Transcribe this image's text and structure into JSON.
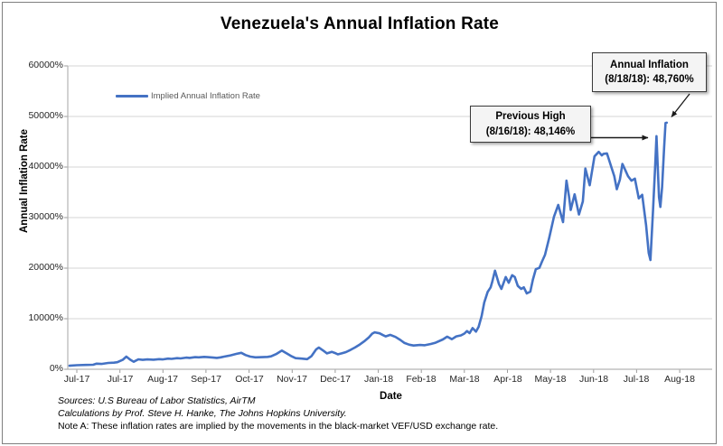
{
  "title": "Venezuela's Annual Inflation Rate",
  "legend": {
    "label": "Implied Annual Inflation Rate"
  },
  "axes": {
    "y_title": "Annual Inflation Rate",
    "x_title": "Date"
  },
  "annotations": [
    {
      "line1": "Annual Inflation",
      "line2": "(8/18/18): 48,760%"
    },
    {
      "line1": "Previous High",
      "line2": "(8/16/18): 48,146%"
    }
  ],
  "footnotes": {
    "sources": "Sources: U.S Bureau of Labor Statistics, AirTM",
    "calculations": "Calculations by Prof. Steve H. Hanke, The Johns Hopkins University.",
    "note_a": "Note A: These inflation rates are implied by the movements in the black-market VEF/USD exchange rate."
  },
  "chart_data": {
    "type": "line",
    "title": "Venezuela's Annual Inflation Rate",
    "xlabel": "Date",
    "ylabel": "Annual Inflation Rate",
    "ylim": [
      0,
      60000
    ],
    "grid": true,
    "legend_position": "top-left-inside",
    "line_color": "#4472C4",
    "y_tick_values": [
      0,
      10000,
      20000,
      30000,
      40000,
      50000,
      60000
    ],
    "y_tick_labels": [
      "0%",
      "10000%",
      "20000%",
      "30000%",
      "40000%",
      "50000%",
      "60000%"
    ],
    "x_tick_labels": [
      "Jul-17",
      "Jul-17",
      "Aug-17",
      "Sep-17",
      "Oct-17",
      "Nov-17",
      "Dec-17",
      "Jan-18",
      "Feb-18",
      "Mar-18",
      "Apr-18",
      "May-18",
      "Jun-18",
      "Jul-18",
      "Aug-18"
    ],
    "highlights": [
      {
        "label": "Previous High",
        "date": "8/16/18",
        "value_pct": 48146
      },
      {
        "label": "Annual Inflation",
        "date": "8/18/18",
        "value_pct": 48760
      }
    ],
    "series": [
      {
        "name": "Implied Annual Inflation Rate",
        "x_unit": "months from Jul-17 tick",
        "y_unit": "annual inflation %",
        "points": [
          [
            -0.17,
            700
          ],
          [
            0,
            800
          ],
          [
            0.21,
            850
          ],
          [
            0.38,
            900
          ],
          [
            0.46,
            1100
          ],
          [
            0.57,
            1050
          ],
          [
            0.73,
            1250
          ],
          [
            0.86,
            1300
          ],
          [
            0.94,
            1400
          ],
          [
            1.07,
            1900
          ],
          [
            1.15,
            2500
          ],
          [
            1.24,
            1900
          ],
          [
            1.32,
            1480
          ],
          [
            1.43,
            1960
          ],
          [
            1.53,
            1850
          ],
          [
            1.64,
            1950
          ],
          [
            1.78,
            1900
          ],
          [
            1.91,
            2000
          ],
          [
            1.99,
            1950
          ],
          [
            2.12,
            2100
          ],
          [
            2.2,
            2050
          ],
          [
            2.33,
            2200
          ],
          [
            2.41,
            2150
          ],
          [
            2.54,
            2300
          ],
          [
            2.62,
            2250
          ],
          [
            2.75,
            2400
          ],
          [
            2.83,
            2350
          ],
          [
            2.96,
            2450
          ],
          [
            3.04,
            2400
          ],
          [
            3.17,
            2300
          ],
          [
            3.25,
            2250
          ],
          [
            3.34,
            2350
          ],
          [
            3.42,
            2500
          ],
          [
            3.57,
            2750
          ],
          [
            3.71,
            3050
          ],
          [
            3.82,
            3250
          ],
          [
            3.92,
            2800
          ],
          [
            4.03,
            2500
          ],
          [
            4.15,
            2350
          ],
          [
            4.3,
            2400
          ],
          [
            4.43,
            2450
          ],
          [
            4.51,
            2550
          ],
          [
            4.64,
            3050
          ],
          [
            4.76,
            3700
          ],
          [
            4.89,
            3050
          ],
          [
            4.99,
            2550
          ],
          [
            5.08,
            2200
          ],
          [
            5.22,
            2100
          ],
          [
            5.35,
            2000
          ],
          [
            5.45,
            2600
          ],
          [
            5.56,
            3950
          ],
          [
            5.62,
            4300
          ],
          [
            5.73,
            3650
          ],
          [
            5.81,
            3150
          ],
          [
            5.92,
            3450
          ],
          [
            6.0,
            3200
          ],
          [
            6.06,
            2950
          ],
          [
            6.15,
            3150
          ],
          [
            6.25,
            3400
          ],
          [
            6.36,
            3850
          ],
          [
            6.46,
            4300
          ],
          [
            6.57,
            4900
          ],
          [
            6.67,
            5500
          ],
          [
            6.78,
            6300
          ],
          [
            6.86,
            7050
          ],
          [
            6.92,
            7300
          ],
          [
            7.03,
            7100
          ],
          [
            7.11,
            6750
          ],
          [
            7.17,
            6500
          ],
          [
            7.28,
            6800
          ],
          [
            7.4,
            6400
          ],
          [
            7.51,
            5800
          ],
          [
            7.61,
            5200
          ],
          [
            7.72,
            4850
          ],
          [
            7.82,
            4700
          ],
          [
            7.97,
            4800
          ],
          [
            8.08,
            4750
          ],
          [
            8.22,
            5000
          ],
          [
            8.33,
            5250
          ],
          [
            8.5,
            5900
          ],
          [
            8.6,
            6450
          ],
          [
            8.71,
            5950
          ],
          [
            8.81,
            6500
          ],
          [
            8.92,
            6700
          ],
          [
            9.0,
            7050
          ],
          [
            9.06,
            7550
          ],
          [
            9.12,
            7150
          ],
          [
            9.19,
            8150
          ],
          [
            9.27,
            7450
          ],
          [
            9.33,
            8400
          ],
          [
            9.4,
            10500
          ],
          [
            9.46,
            13200
          ],
          [
            9.54,
            15300
          ],
          [
            9.61,
            16200
          ],
          [
            9.65,
            17400
          ],
          [
            9.71,
            19500
          ],
          [
            9.8,
            16900
          ],
          [
            9.86,
            15900
          ],
          [
            9.96,
            18250
          ],
          [
            10.03,
            17100
          ],
          [
            10.11,
            18600
          ],
          [
            10.17,
            18250
          ],
          [
            10.24,
            16500
          ],
          [
            10.32,
            15900
          ],
          [
            10.38,
            16200
          ],
          [
            10.45,
            15000
          ],
          [
            10.53,
            15350
          ],
          [
            10.59,
            17700
          ],
          [
            10.66,
            19800
          ],
          [
            10.74,
            20050
          ],
          [
            10.8,
            21250
          ],
          [
            10.87,
            22600
          ],
          [
            10.97,
            26000
          ],
          [
            11.08,
            30200
          ],
          [
            11.18,
            32500
          ],
          [
            11.29,
            29100
          ],
          [
            11.37,
            37300
          ],
          [
            11.43,
            34200
          ],
          [
            11.47,
            31500
          ],
          [
            11.56,
            34600
          ],
          [
            11.66,
            30600
          ],
          [
            11.75,
            33200
          ],
          [
            11.81,
            39700
          ],
          [
            11.91,
            36400
          ],
          [
            12.02,
            42100
          ],
          [
            12.12,
            43000
          ],
          [
            12.19,
            42300
          ],
          [
            12.23,
            42600
          ],
          [
            12.31,
            42700
          ],
          [
            12.42,
            39800
          ],
          [
            12.48,
            38200
          ],
          [
            12.54,
            35600
          ],
          [
            12.61,
            37500
          ],
          [
            12.67,
            40600
          ],
          [
            12.73,
            39500
          ],
          [
            12.8,
            38200
          ],
          [
            12.88,
            37300
          ],
          [
            12.96,
            37700
          ],
          [
            13.05,
            33800
          ],
          [
            13.13,
            34500
          ],
          [
            13.22,
            28500
          ],
          [
            13.28,
            23000
          ],
          [
            13.32,
            21600
          ],
          [
            13.38,
            31500
          ],
          [
            13.43,
            40000
          ],
          [
            13.46,
            46100
          ],
          [
            13.49,
            40000
          ],
          [
            13.52,
            34000
          ],
          [
            13.55,
            32100
          ],
          [
            13.59,
            36000
          ],
          [
            13.64,
            44000
          ],
          [
            13.67,
            48700
          ],
          [
            13.7,
            48760
          ]
        ]
      }
    ]
  }
}
